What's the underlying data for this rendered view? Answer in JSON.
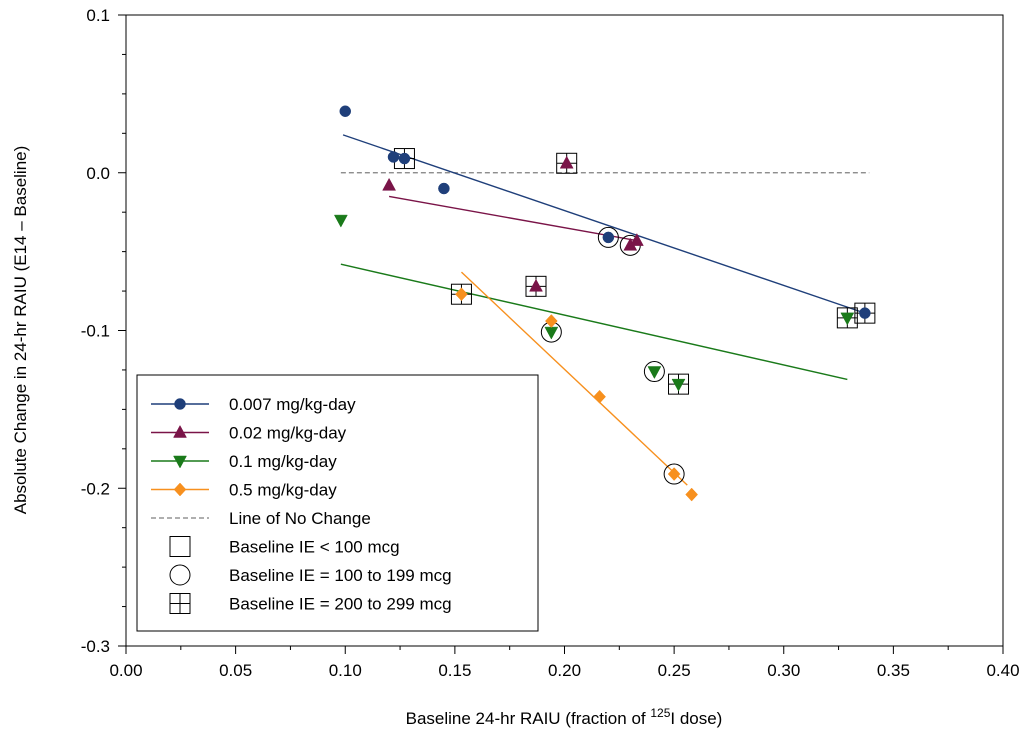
{
  "chart_data": {
    "type": "scatter",
    "xlabel": {
      "pre": "Baseline 24-hr RAIU (fraction of ",
      "sup": "125",
      "post": "I dose)"
    },
    "ylabel": "Absolute Change in 24-hr RAIU (E14 – Baseline)",
    "xlim": [
      0.0,
      0.4
    ],
    "ylim": [
      -0.3,
      0.1
    ],
    "xticks": [
      0.0,
      0.05,
      0.1,
      0.15,
      0.2,
      0.25,
      0.3,
      0.35,
      0.4
    ],
    "xtick_labels": [
      "0.00",
      "0.05",
      "0.10",
      "0.15",
      "0.20",
      "0.25",
      "0.30",
      "0.35",
      "0.40"
    ],
    "yticks": [
      0.1,
      0.0,
      -0.1,
      -0.2,
      -0.3
    ],
    "ytick_labels": [
      "0.1",
      "0.0",
      "-0.1",
      "-0.2",
      "-0.3"
    ],
    "grid": false,
    "legend_position": "bottom-left",
    "series": [
      {
        "name": "0.007 mg/kg-day",
        "color": "#1f3f7a",
        "marker": "circle",
        "points": [
          {
            "x": 0.1,
            "y": 0.039,
            "ie": "none"
          },
          {
            "x": 0.122,
            "y": 0.01,
            "ie": "none"
          },
          {
            "x": 0.127,
            "y": 0.009,
            "ie": "200-299"
          },
          {
            "x": 0.145,
            "y": -0.01,
            "ie": "none"
          },
          {
            "x": 0.22,
            "y": -0.041,
            "ie": "100-199"
          },
          {
            "x": 0.337,
            "y": -0.089,
            "ie": "200-299"
          }
        ],
        "fit": {
          "x": [
            0.099,
            0.337
          ],
          "y": [
            0.024,
            -0.089
          ]
        }
      },
      {
        "name": "0.02 mg/kg-day",
        "color": "#7a1448",
        "marker": "triangle-up",
        "points": [
          {
            "x": 0.12,
            "y": -0.008,
            "ie": "none"
          },
          {
            "x": 0.201,
            "y": 0.006,
            "ie": "200-299"
          },
          {
            "x": 0.187,
            "y": -0.072,
            "ie": "200-299"
          },
          {
            "x": 0.23,
            "y": -0.046,
            "ie": "100-199"
          },
          {
            "x": 0.233,
            "y": -0.043,
            "ie": "none"
          }
        ],
        "fit": {
          "x": [
            0.12,
            0.233
          ],
          "y": [
            -0.015,
            -0.043
          ]
        }
      },
      {
        "name": "0.1 mg/kg-day",
        "color": "#1a7a1a",
        "marker": "triangle-down",
        "points": [
          {
            "x": 0.098,
            "y": -0.03,
            "ie": "none"
          },
          {
            "x": 0.194,
            "y": -0.101,
            "ie": "100-199"
          },
          {
            "x": 0.241,
            "y": -0.126,
            "ie": "100-199"
          },
          {
            "x": 0.252,
            "y": -0.134,
            "ie": "200-299"
          },
          {
            "x": 0.329,
            "y": -0.092,
            "ie": "200-299"
          }
        ],
        "fit": {
          "x": [
            0.098,
            0.329
          ],
          "y": [
            -0.058,
            -0.131
          ]
        }
      },
      {
        "name": "0.5 mg/kg-day",
        "color": "#f7901e",
        "marker": "diamond",
        "points": [
          {
            "x": 0.153,
            "y": -0.077,
            "ie": "200-299"
          },
          {
            "x": 0.194,
            "y": -0.094,
            "ie": "none"
          },
          {
            "x": 0.216,
            "y": -0.142,
            "ie": "none"
          },
          {
            "x": 0.25,
            "y": -0.191,
            "ie": "100-199"
          },
          {
            "x": 0.258,
            "y": -0.204,
            "ie": "none"
          }
        ],
        "fit": {
          "x": [
            0.153,
            0.256
          ],
          "y": [
            -0.063,
            -0.198
          ]
        }
      }
    ],
    "reference_line": {
      "name": "Line of No Change",
      "y": 0.0,
      "x": [
        0.098,
        0.339
      ],
      "color": "#7f7f7f"
    },
    "legend": [
      {
        "label": "0.007 mg/kg-day",
        "kind": "series",
        "series": 0
      },
      {
        "label": "0.02 mg/kg-day",
        "kind": "series",
        "series": 1
      },
      {
        "label": "0.1 mg/kg-day",
        "kind": "series",
        "series": 2
      },
      {
        "label": "0.5 mg/kg-day",
        "kind": "series",
        "series": 3
      },
      {
        "label": "Line of No Change",
        "kind": "reference"
      },
      {
        "label": "Baseline IE < 100 mcg",
        "kind": "ie",
        "ie": "lt100"
      },
      {
        "label": "Baseline IE = 100 to 199 mcg",
        "kind": "ie",
        "ie": "100-199"
      },
      {
        "label": "Baseline IE = 200 to 299 mcg",
        "kind": "ie",
        "ie": "200-299"
      }
    ]
  }
}
